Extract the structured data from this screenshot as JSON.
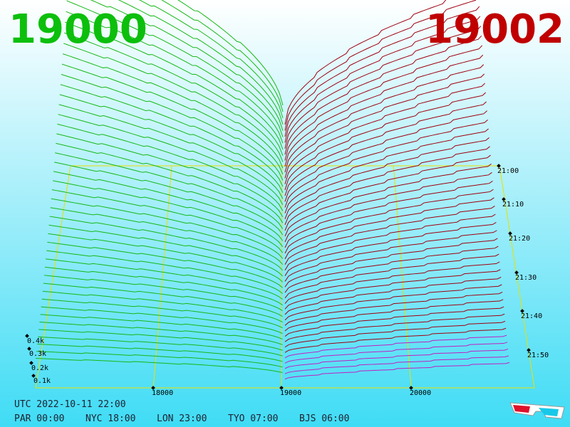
{
  "header": {
    "bid_price": "19000",
    "ask_price": "19002"
  },
  "depth_axis": {
    "ticks": [
      "0.1k",
      "0.2k",
      "0.3k",
      "0.4k"
    ]
  },
  "price_axis": {
    "ticks": [
      "18000",
      "19000",
      "20000"
    ]
  },
  "time_axis": {
    "ticks": [
      "21:00",
      "21:10",
      "21:20",
      "21:30",
      "21:40",
      "21:50"
    ]
  },
  "footer": {
    "utc": "UTC 2022-10-11 22:00",
    "clocks": [
      "PAR 00:00",
      "NYC 18:00",
      "LON 23:00",
      "TYO 07:00",
      "BJS 06:00"
    ]
  }
}
